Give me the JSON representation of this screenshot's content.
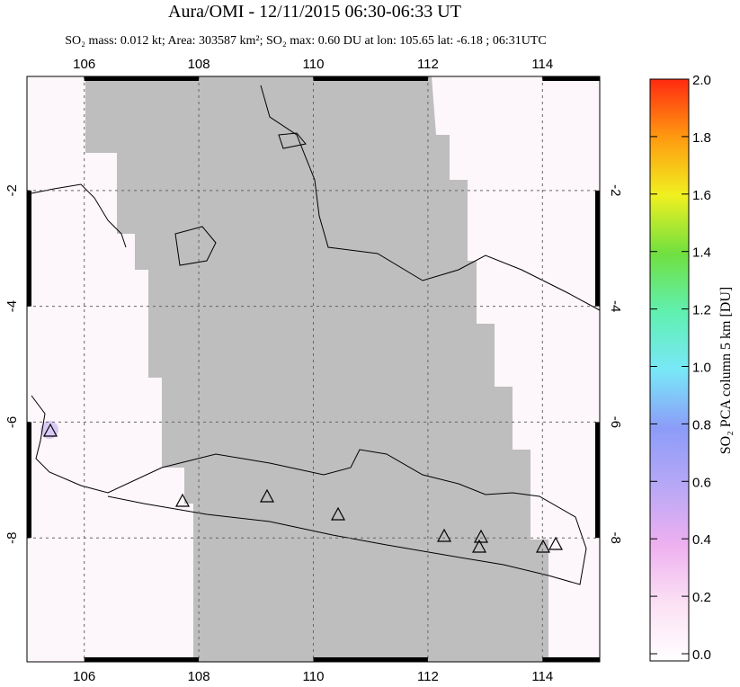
{
  "map": {
    "title": "Aura/OMI - 12/11/2015 06:30-06:33 UT",
    "subtitle": "SO₂ mass: 0.012 kt; Area: 303587 km²; SO₂ max: 0.60 DU at lon: 105.65 lat: -6.18 ; 06:31UTC",
    "xlim": [
      105,
      115
    ],
    "ylim": [
      -10.14,
      -0.03
    ],
    "xticks": [
      106,
      108,
      110,
      112,
      114
    ],
    "yticks": [
      -2,
      -4,
      -6,
      -8
    ],
    "colorbar": {
      "label": "SO₂ PCA column 5 km [DU]",
      "lim": [
        0,
        2
      ],
      "ticks": [
        {
          "value": 0,
          "label": "0.0"
        },
        0.2,
        0.4,
        0.6,
        0.8,
        {
          "value": 1,
          "label": "1.0"
        },
        1.2,
        1.4,
        1.6,
        1.8,
        {
          "value": 2,
          "label": "2.0"
        }
      ]
    }
  }
}
